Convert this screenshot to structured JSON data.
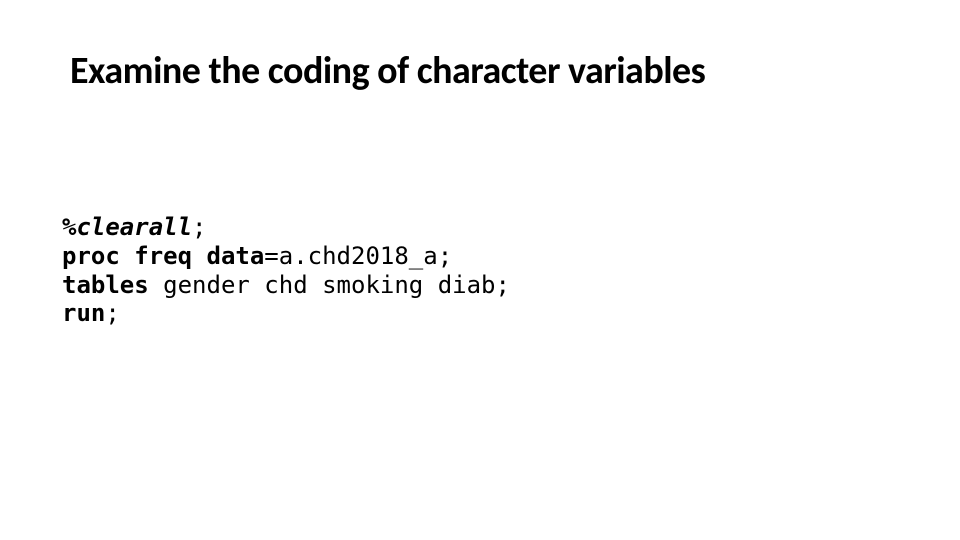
{
  "title": "Examine the coding of character variables",
  "code": {
    "line1": {
      "macro": "%clearall",
      "semicolon": ";"
    },
    "line2": {
      "keyword": "proc freq ",
      "option": "data",
      "rest": "=a.chd2018_a;"
    },
    "line3": {
      "keyword": "tables",
      "rest": " gender chd smoking diab;"
    },
    "line4": {
      "keyword": "run",
      "rest": ";"
    }
  },
  "colors": {
    "background": "#ffffff",
    "text": "#000000"
  },
  "typography": {
    "title_fontsize": 38,
    "title_weight": 700,
    "code_fontsize": 24,
    "code_family": "Lucida Console"
  }
}
